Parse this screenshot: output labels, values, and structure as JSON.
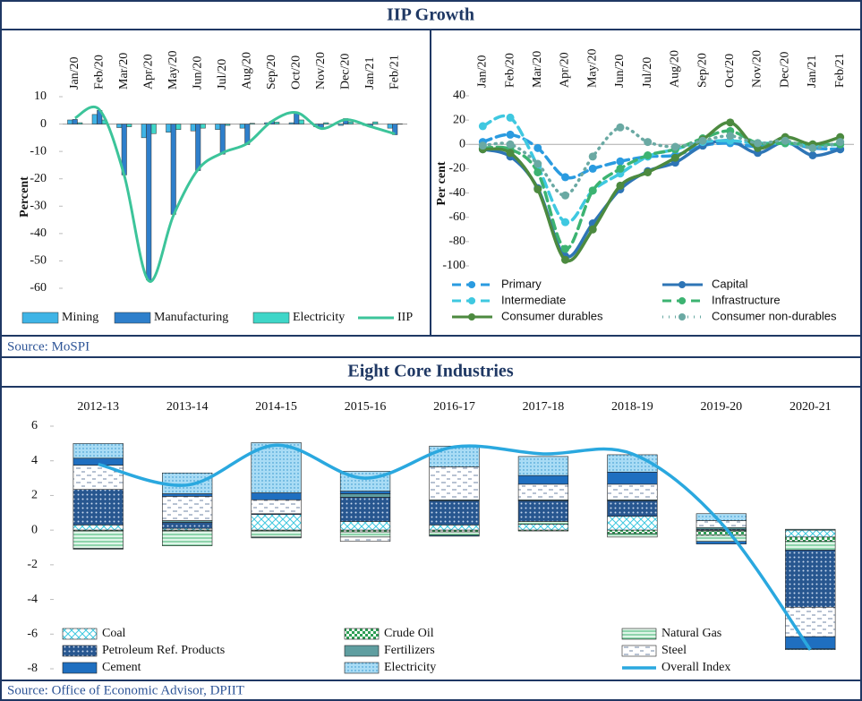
{
  "header_1": "IIP Growth",
  "source_1": "Source: MoSPI",
  "header_2": "Eight Core Industries",
  "source_2": "Source: Office of Economic Advisor, DPIIT",
  "chart_data": [
    {
      "type": "bar",
      "y_label": "Percent",
      "categories": [
        "Jan/20",
        "Feb/20",
        "Mar/20",
        "Apr/20",
        "May/20",
        "Jun/20",
        "Jul/20",
        "Aug/20",
        "Sep/20",
        "Oct/20",
        "Nov/20",
        "Dec/20",
        "Jan/21",
        "Feb/21"
      ],
      "ylim": [
        -60,
        10
      ],
      "yticks": [
        10,
        0,
        -10,
        -20,
        -30,
        -40,
        -50,
        -60
      ],
      "series": [
        {
          "name": "Mining",
          "type": "bar",
          "color": "#3fb4e6",
          "values": [
            1.5,
            3.5,
            -1.3,
            -5.0,
            -3.0,
            -2.5,
            -2.0,
            -1.5,
            0.5,
            0.5,
            -1.0,
            -0.5,
            -0.5,
            -1.5
          ]
        },
        {
          "name": "Manufacturing",
          "type": "bar",
          "color": "#2e7fcb",
          "values": [
            1.7,
            5.0,
            -18.6,
            -57.0,
            -33.0,
            -17.0,
            -11.0,
            -7.5,
            1.0,
            3.9,
            -1.5,
            2.0,
            -1.0,
            -3.9
          ]
        },
        {
          "name": "Electricity",
          "type": "bar",
          "color": "#3fd6c8",
          "values": [
            0.5,
            1.5,
            -1.0,
            -3.5,
            -2.0,
            -1.5,
            -0.5,
            0.3,
            0.7,
            1.5,
            0.5,
            0.8,
            0.8,
            0.1
          ]
        },
        {
          "name": "IIP",
          "type": "line",
          "color": "#3cc49a",
          "values": [
            2.2,
            5.2,
            -18.7,
            -57.3,
            -33.4,
            -16.6,
            -10.5,
            -7.1,
            1.0,
            4.2,
            -1.6,
            1.6,
            -0.9,
            -3.6
          ]
        }
      ]
    },
    {
      "type": "line",
      "y_label": "Per cent",
      "categories": [
        "Jan/20",
        "Feb/20",
        "Mar/20",
        "Apr/20",
        "May/20",
        "Jun/20",
        "Jul/20",
        "Aug/20",
        "Sep/20",
        "Oct/20",
        "Nov/20",
        "Dec/20",
        "Jan/21",
        "Feb/21"
      ],
      "ylim": [
        -100,
        40
      ],
      "yticks": [
        40,
        20,
        0,
        -20,
        -40,
        -60,
        -80,
        -100
      ],
      "series": [
        {
          "name": "Primary",
          "line_style": "dashed",
          "color": "#2a9be0",
          "values": [
            2,
            8,
            -3,
            -27,
            -20,
            -14,
            -10,
            -9,
            -1,
            1,
            -2,
            1,
            -3,
            -4
          ]
        },
        {
          "name": "Capital",
          "line_style": "solid",
          "color": "#2e75b6",
          "values": [
            -4,
            -10,
            -36,
            -92,
            -65,
            -37,
            -22,
            -15,
            -1,
            3,
            -7,
            2,
            -9,
            -4
          ]
        },
        {
          "name": "Intermediate",
          "line_style": "dashed",
          "color": "#3fc8e0",
          "values": [
            15,
            22,
            -18,
            -64,
            -38,
            -24,
            -10,
            -4,
            2,
            3,
            1,
            1,
            -1,
            0
          ]
        },
        {
          "name": "Infrastructure",
          "line_style": "dashed",
          "color": "#3cb371",
          "values": [
            -3,
            -4,
            -23,
            -86,
            -38,
            -20,
            -9,
            -4,
            5,
            11,
            1,
            1,
            0,
            0
          ]
        },
        {
          "name": "Consumer durables",
          "line_style": "solid",
          "color": "#4c8a3f",
          "values": [
            -4,
            -7,
            -37,
            -95,
            -70,
            -34,
            -23,
            -11,
            4,
            18,
            -3,
            6,
            0,
            6
          ]
        },
        {
          "name": "Consumer non-durables",
          "line_style": "dotted",
          "color": "#6aa9a3",
          "values": [
            -1,
            0,
            -16,
            -42,
            -10,
            14,
            2,
            -2,
            3,
            7,
            1,
            3,
            -3,
            2
          ]
        }
      ]
    },
    {
      "type": "stacked_bar",
      "categories": [
        "2012-13",
        "2013-14",
        "2014-15",
        "2015-16",
        "2016-17",
        "2017-18",
        "2018-19",
        "2019-20",
        "2020-21"
      ],
      "ylim": [
        -8,
        6
      ],
      "yticks": [
        6,
        4,
        2,
        0,
        -2,
        -4,
        -6,
        -8
      ],
      "series": [
        {
          "name": "Coal",
          "type": "bar",
          "pattern": "cross",
          "color": "#3fc8e0",
          "values": [
            0.3,
            0.1,
            0.9,
            0.5,
            0.3,
            0.35,
            0.8,
            -0.05,
            -0.4
          ]
        },
        {
          "name": "Crude Oil",
          "type": "bar",
          "pattern": "check",
          "color": "#2e9e55",
          "values": [
            -0.05,
            -0.05,
            -0.05,
            -0.1,
            -0.1,
            -0.05,
            -0.2,
            -0.25,
            -0.25
          ]
        },
        {
          "name": "Natural Gas",
          "type": "bar",
          "pattern": "hlines",
          "color": "#7fd3a3",
          "values": [
            -1.0,
            -0.85,
            -0.35,
            -0.3,
            -0.2,
            0.15,
            -0.2,
            -0.35,
            -0.5
          ]
        },
        {
          "name": "Petroleum Ref. Products",
          "type": "bar",
          "pattern": "dots",
          "color": "#27568f",
          "values": [
            2.05,
            0.35,
            0.05,
            1.4,
            1.4,
            1.2,
            0.9,
            0.05,
            -3.3
          ]
        },
        {
          "name": "Fertilizers",
          "type": "bar",
          "pattern": "",
          "color": "#5f9ea0",
          "values": [
            -0.05,
            0.1,
            -0.05,
            0.2,
            0.05,
            0.05,
            0.05,
            0.1,
            0.05
          ]
        },
        {
          "name": "Steel",
          "type": "bar",
          "pattern": "dash",
          "color": "#8fa8c8",
          "values": [
            1.4,
            1.4,
            0.8,
            -0.25,
            1.9,
            0.9,
            0.9,
            0.4,
            -1.7
          ]
        },
        {
          "name": "Cement",
          "type": "bar",
          "pattern": "",
          "color": "#1f6fc0",
          "values": [
            0.4,
            0.15,
            0.4,
            0.15,
            -0.05,
            0.5,
            0.7,
            -0.15,
            -0.7
          ]
        },
        {
          "name": "Electricity",
          "type": "bar",
          "pattern": "fine",
          "color": "#5ab7e6",
          "values": [
            0.85,
            1.2,
            2.9,
            1.15,
            1.2,
            1.1,
            1.0,
            0.4,
            -0.05
          ]
        },
        {
          "name": "Overall Index",
          "type": "line",
          "color": "#2aa8df",
          "values": [
            3.8,
            2.6,
            4.9,
            3.0,
            4.8,
            4.4,
            4.4,
            0.4,
            -6.9
          ]
        }
      ]
    }
  ]
}
